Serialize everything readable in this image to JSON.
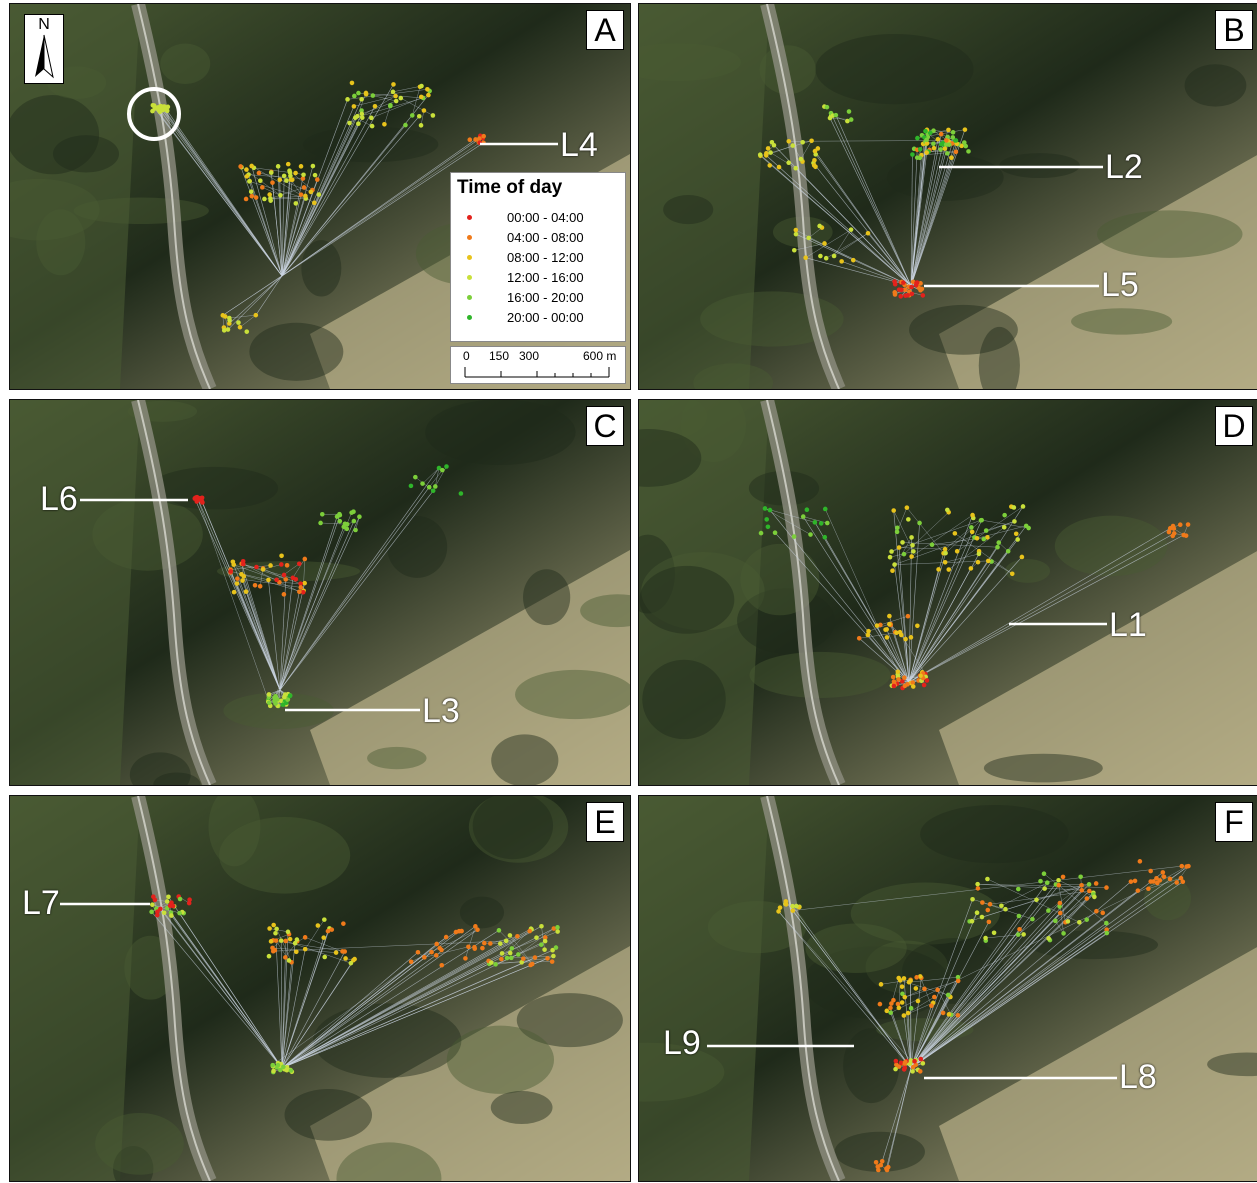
{
  "panels": [
    {
      "letter": "A"
    },
    {
      "letter": "B"
    },
    {
      "letter": "C"
    },
    {
      "letter": "D"
    },
    {
      "letter": "E"
    },
    {
      "letter": "F"
    }
  ],
  "labels": {
    "A": [
      "L4"
    ],
    "B": [
      "L2",
      "L5"
    ],
    "C": [
      "L6",
      "L3"
    ],
    "D": [
      "L1"
    ],
    "E": [
      "L7"
    ],
    "F": [
      "L9",
      "L8"
    ]
  },
  "north_arrow": {
    "label": "N"
  },
  "legend": {
    "title": "Time of day",
    "items": [
      {
        "label": "00:00 - 04:00",
        "color": "#e3221c"
      },
      {
        "label": "04:00 - 08:00",
        "color": "#f07a1a"
      },
      {
        "label": "08:00 - 12:00",
        "color": "#e8c31b"
      },
      {
        "label": "12:00 - 16:00",
        "color": "#c9e03a"
      },
      {
        "label": "16:00 - 20:00",
        "color": "#7ccf3a"
      },
      {
        "label": "20:00 - 00:00",
        "color": "#2fb52a"
      }
    ]
  },
  "scale_bar": {
    "ticks": [
      "0",
      "150",
      "300",
      "600 m"
    ]
  },
  "colors": {
    "terrain_dark": "#1f2a1a",
    "terrain_mid": "#4a5a33",
    "terrain_light": "#b3ab84",
    "valley": "#8d8d80",
    "line": "#c9d3e0"
  }
}
